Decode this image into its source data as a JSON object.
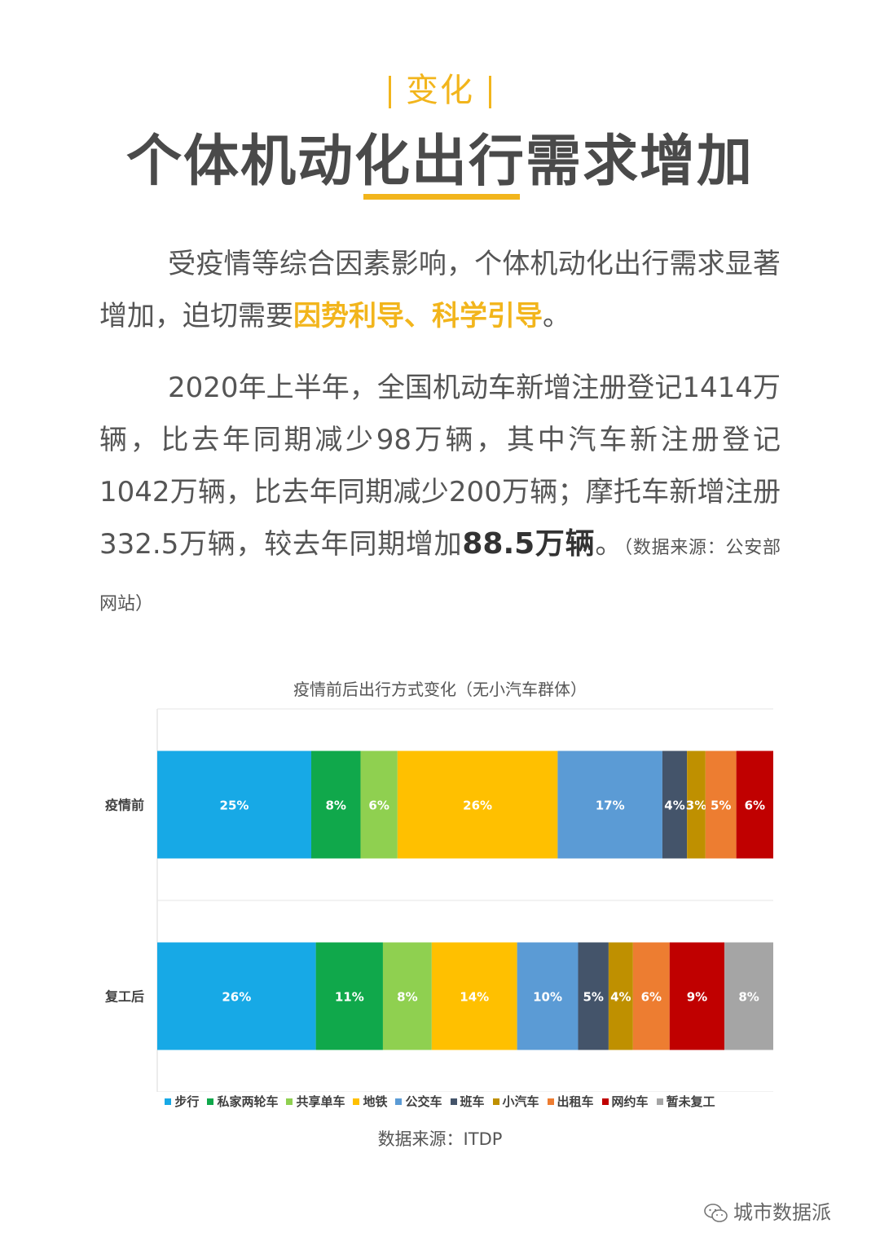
{
  "section_tag": "变化",
  "page_title": "个体机动化出行需求增加",
  "para1": {
    "text_before": "受疫情等综合因素影响，个体机动化出行需求显著增加，迫切需要",
    "highlight": "因势利导、科学引导",
    "text_after": "。"
  },
  "para2": {
    "text_before": "2020年上半年，全国机动车新增注册登记1414万辆，比去年同期减少98万辆，其中汽车新注册登记1042万辆，比去年同期减少200万辆；摩托车新增注册332.5万辆，较去年同期增加",
    "bold": "88.5万辆",
    "text_after": "。",
    "source": "（数据来源：公安部网站）"
  },
  "chart_title": "疫情前后出行方式变化（无小汽车群体）",
  "chart_source": "数据来源：ITDP",
  "watermark": "城市数据派",
  "colors": {
    "accent": "#f2b51c",
    "title_gray": "#4a4a4a"
  },
  "chart_data": {
    "type": "bar",
    "orientation": "horizontal",
    "stacked": true,
    "percent_stacked": true,
    "categories": [
      "疫情前",
      "复工后"
    ],
    "series": [
      {
        "name": "步行",
        "color": "#17a9e6",
        "values": [
          25,
          26
        ]
      },
      {
        "name": "私家两轮车",
        "color": "#10a84b",
        "values": [
          8,
          11
        ]
      },
      {
        "name": "共享单车",
        "color": "#8fd050",
        "values": [
          6,
          8
        ]
      },
      {
        "name": "地铁",
        "color": "#ffc000",
        "values": [
          26,
          14
        ]
      },
      {
        "name": "公交车",
        "color": "#5b9bd5",
        "values": [
          17,
          10
        ]
      },
      {
        "name": "班车",
        "color": "#44546a",
        "values": [
          4,
          5
        ]
      },
      {
        "name": "小汽车",
        "color": "#bf9000",
        "values": [
          3,
          4
        ]
      },
      {
        "name": "出租车",
        "color": "#ed7d31",
        "values": [
          5,
          6
        ]
      },
      {
        "name": "网约车",
        "color": "#c00000",
        "values": [
          6,
          9
        ]
      },
      {
        "name": "暂未复工",
        "color": "#a5a5a5",
        "values": [
          0,
          8
        ]
      }
    ],
    "value_suffix": "%",
    "legend_position": "bottom"
  }
}
